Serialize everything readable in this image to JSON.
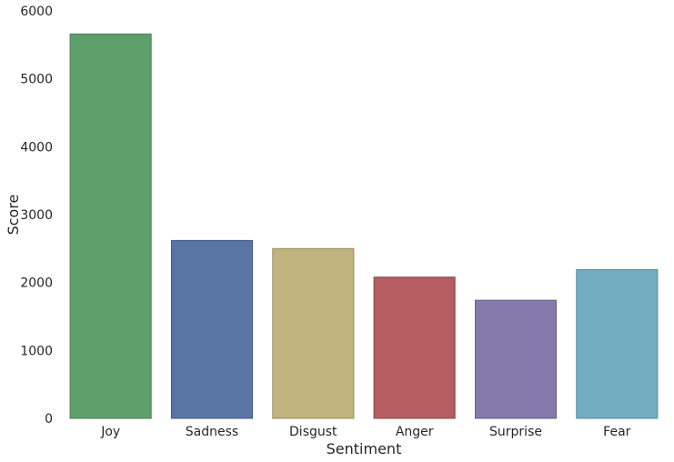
{
  "chart_data": {
    "type": "bar",
    "categories": [
      "Joy",
      "Sadness",
      "Disgust",
      "Anger",
      "Surprise",
      "Fear"
    ],
    "values": [
      5660,
      2620,
      2500,
      2080,
      1740,
      2190
    ],
    "colors": [
      "#5e9f6c",
      "#5975a4",
      "#c0b37d",
      "#b55d60",
      "#857aaa",
      "#72adc1"
    ],
    "edge_colors": [
      "#4a7d55",
      "#465c81",
      "#978d62",
      "#8e494b",
      "#686085",
      "#5a8898"
    ],
    "xlabel": "Sentiment",
    "ylabel": "Score",
    "ylim": [
      0,
      6000
    ],
    "yticks": [
      0,
      1000,
      2000,
      3000,
      4000,
      5000,
      6000
    ],
    "grid": false,
    "legend": "none"
  }
}
